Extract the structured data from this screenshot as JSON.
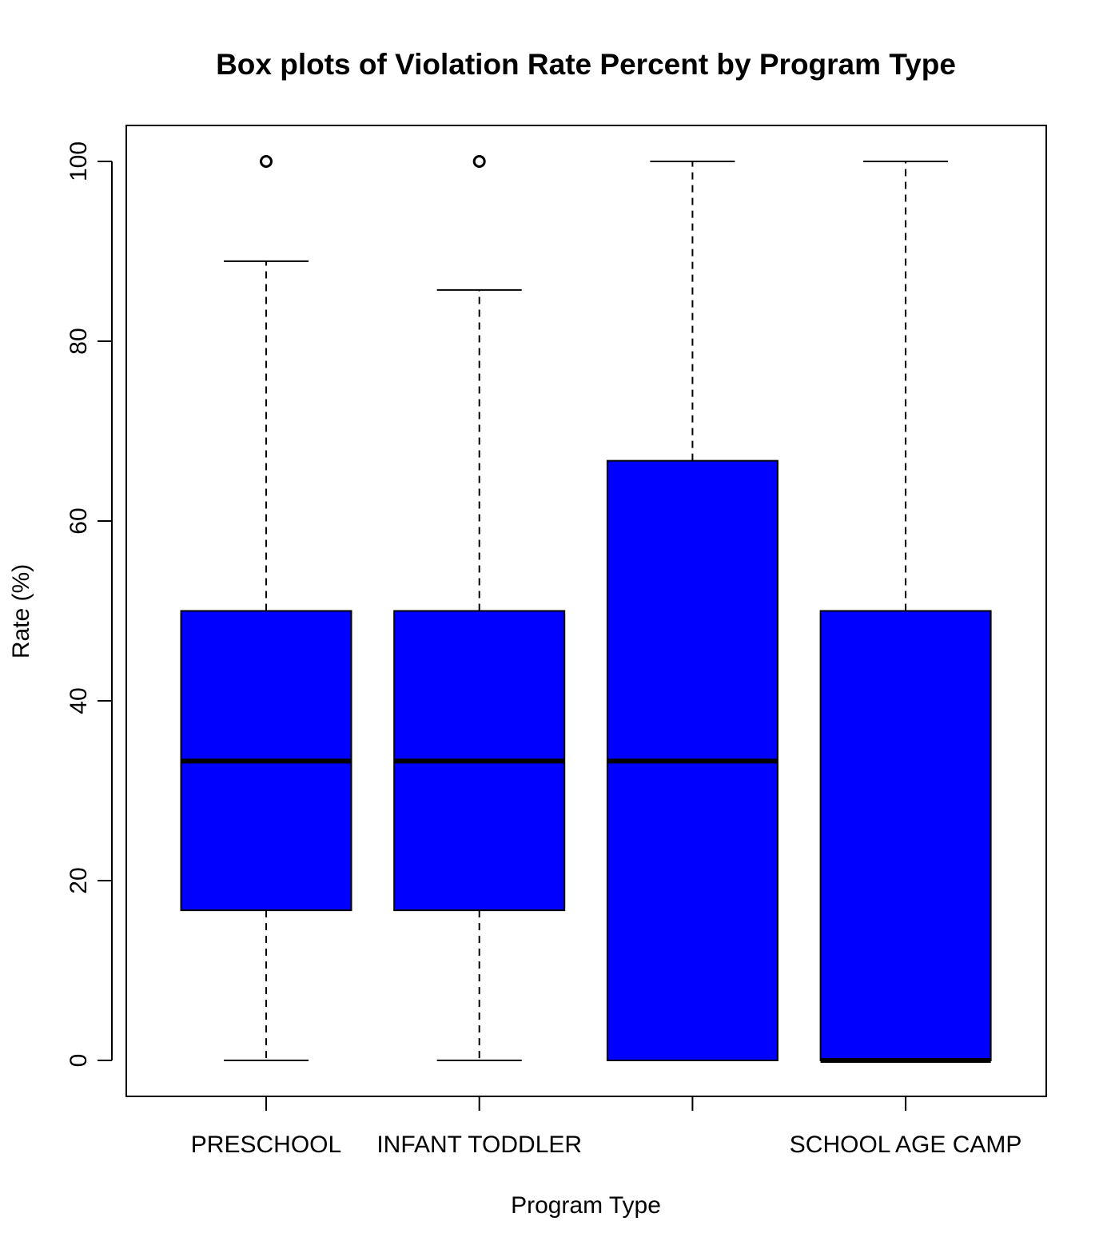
{
  "chart_data": {
    "type": "box",
    "title": "Box plots of Violation Rate Percent by Program Type",
    "xlabel": "Program Type",
    "ylabel": "Rate (%)",
    "ylim": [
      -4,
      104
    ],
    "yticks": [
      0,
      20,
      40,
      60,
      80,
      100
    ],
    "categories": [
      "PRESCHOOL",
      "INFANT TODDLER",
      "",
      "SCHOOL AGE CAMP"
    ],
    "box_color": "#0000ff",
    "grid": false,
    "legend": "none",
    "boxes": [
      {
        "category": "PRESCHOOL",
        "whisker_low": 0,
        "q1": 16.7,
        "median": 33.3,
        "q3": 50,
        "whisker_high": 88.9,
        "outliers": [
          100
        ]
      },
      {
        "category": "INFANT TODDLER",
        "whisker_low": 0,
        "q1": 16.7,
        "median": 33.3,
        "q3": 50,
        "whisker_high": 85.7,
        "outliers": [
          100
        ]
      },
      {
        "category": "",
        "whisker_low": 0,
        "q1": 0,
        "median": 33.3,
        "q3": 66.7,
        "whisker_high": 100,
        "outliers": []
      },
      {
        "category": "SCHOOL AGE CAMP",
        "whisker_low": 0,
        "q1": 0,
        "median": 0,
        "q3": 50,
        "whisker_high": 100,
        "outliers": []
      }
    ]
  }
}
